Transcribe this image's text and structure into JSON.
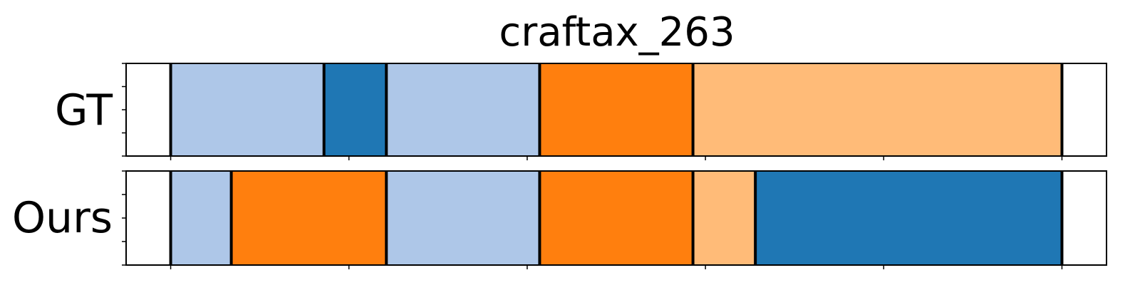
{
  "chart_data": {
    "type": "bar",
    "title": "craftax_263",
    "x_range": [
      -25,
      525
    ],
    "x_ticks": [
      0,
      100,
      200,
      300,
      400,
      500
    ],
    "colors": {
      "light_blue": "#aec7e8",
      "dark_blue": "#1f77b4",
      "orange": "#ff7f0e",
      "light_orange": "#ffbb78"
    },
    "rows": [
      {
        "label": "GT",
        "segments": [
          {
            "start": 0,
            "end": 86,
            "color": "light_blue"
          },
          {
            "start": 86,
            "end": 121,
            "color": "dark_blue"
          },
          {
            "start": 121,
            "end": 207,
            "color": "light_blue"
          },
          {
            "start": 207,
            "end": 293,
            "color": "orange"
          },
          {
            "start": 293,
            "end": 500,
            "color": "light_orange"
          }
        ]
      },
      {
        "label": "Ours",
        "segments": [
          {
            "start": 0,
            "end": 34,
            "color": "light_blue"
          },
          {
            "start": 34,
            "end": 121,
            "color": "orange"
          },
          {
            "start": 121,
            "end": 207,
            "color": "light_blue"
          },
          {
            "start": 207,
            "end": 293,
            "color": "orange"
          },
          {
            "start": 293,
            "end": 328,
            "color": "light_orange"
          },
          {
            "start": 328,
            "end": 500,
            "color": "dark_blue"
          }
        ]
      }
    ]
  }
}
